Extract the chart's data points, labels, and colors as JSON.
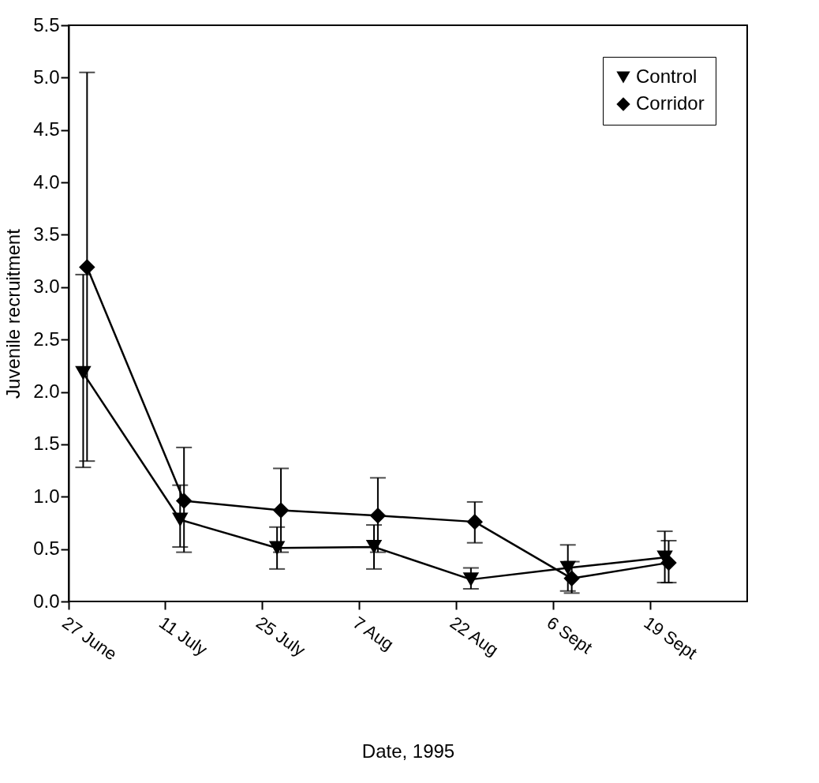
{
  "chart_data": {
    "type": "line",
    "xlabel": "Date, 1995",
    "ylabel": "Juvenile recruitment",
    "categories": [
      "27 June",
      "11 July",
      "25 July",
      "7 Aug",
      "22 Aug",
      "6 Sept",
      "19 Sept"
    ],
    "ylim": [
      0,
      5.5
    ],
    "yticks": [
      {
        "value": 0,
        "label": "0.0"
      },
      {
        "value": 0.5,
        "label": "0.5"
      },
      {
        "value": 1,
        "label": "1.0"
      },
      {
        "value": 1.5,
        "label": "1.5"
      },
      {
        "value": 2,
        "label": "2.0"
      },
      {
        "value": 2.5,
        "label": "2.5"
      },
      {
        "value": 3,
        "label": "3.0"
      },
      {
        "value": 3.5,
        "label": "3.5"
      },
      {
        "value": 4,
        "label": "4.0"
      },
      {
        "value": 4.5,
        "label": "4.5"
      },
      {
        "value": 5,
        "label": "5.0"
      },
      {
        "value": 5.5,
        "label": "5.5"
      }
    ],
    "grid": false,
    "legend": "top right",
    "line_style": "solid",
    "series": [
      {
        "name": "Control",
        "color": "#000000",
        "marker": "triangle",
        "values": [
          2.18,
          0.78,
          0.51,
          0.52,
          0.21,
          0.32,
          0.42
        ],
        "errors": [
          [
            1.28,
            3.12
          ],
          [
            0.52,
            1.11
          ],
          [
            0.31,
            0.71
          ],
          [
            0.31,
            0.73
          ],
          [
            0.12,
            0.32
          ],
          [
            0.1,
            0.54
          ],
          [
            0.18,
            0.67
          ]
        ]
      },
      {
        "name": "Corridor",
        "color": "#000000",
        "marker": "diamond",
        "values": [
          3.19,
          0.96,
          0.87,
          0.82,
          0.76,
          0.22,
          0.37
        ],
        "errors": [
          [
            1.34,
            5.05
          ],
          [
            0.47,
            1.47
          ],
          [
            0.47,
            1.27
          ],
          [
            0.47,
            1.18
          ],
          [
            0.56,
            0.95
          ],
          [
            0.08,
            0.38
          ],
          [
            0.18,
            0.58
          ]
        ]
      }
    ]
  }
}
